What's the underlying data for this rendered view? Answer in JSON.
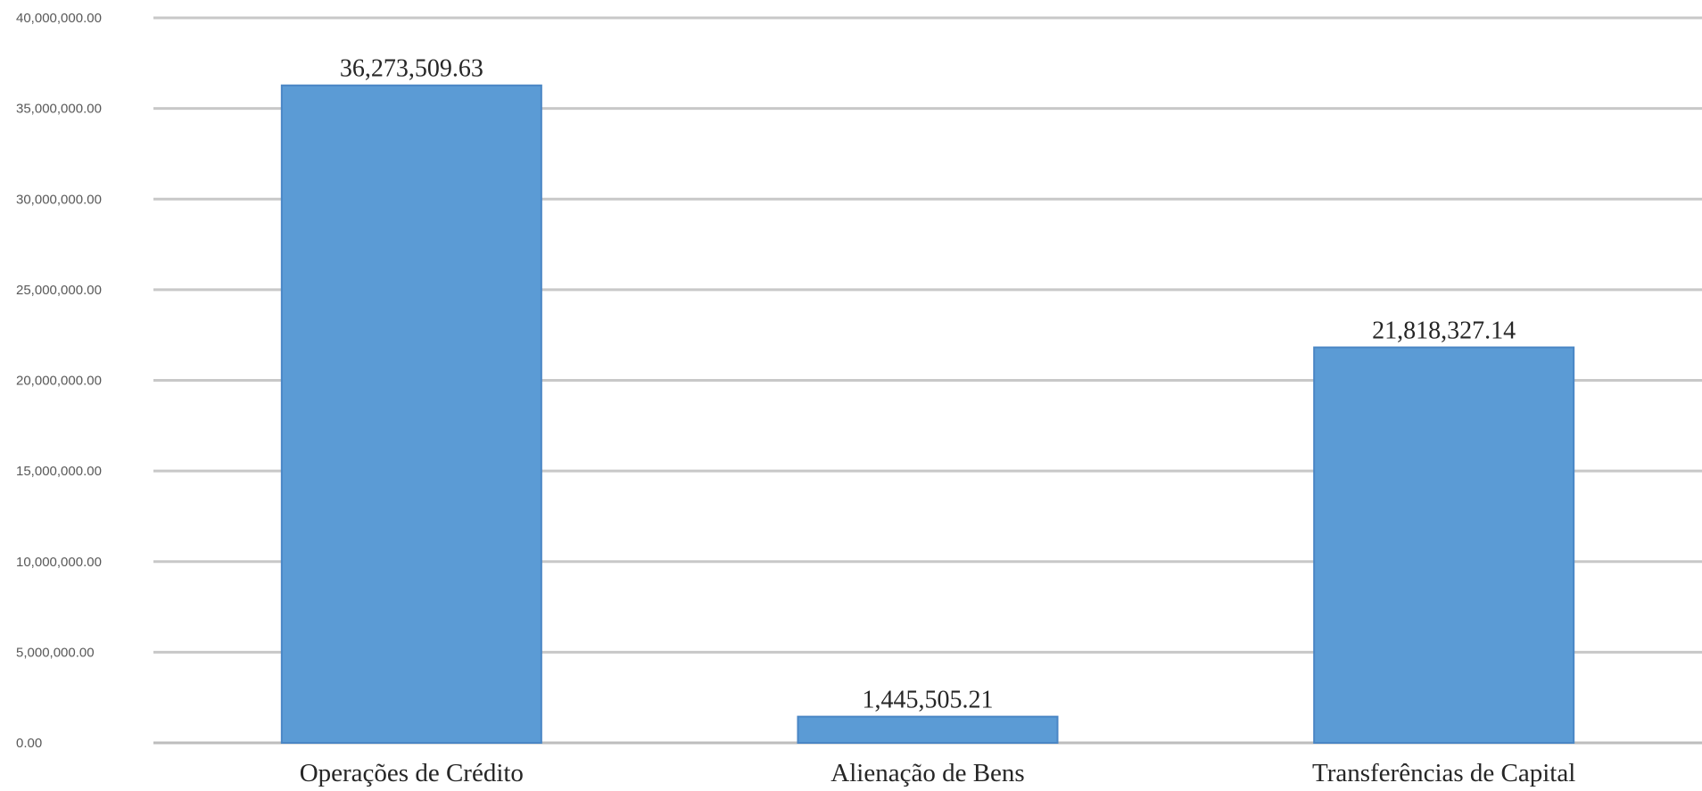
{
  "chart_data": {
    "type": "bar",
    "title": "",
    "xlabel": "",
    "ylabel": "",
    "categories": [
      "Operações de Crédito",
      "Alienação de Bens",
      "Transferências de Capital"
    ],
    "values": [
      36273509.63,
      1445505.21,
      21818327.14
    ],
    "data_labels": [
      "36,273,509.63",
      "1,445,505.21",
      "21,818,327.14"
    ],
    "ylim": [
      0,
      40000000
    ],
    "yticks": [
      0,
      5000000,
      10000000,
      15000000,
      20000000,
      25000000,
      30000000,
      35000000,
      40000000
    ],
    "ytick_labels": [
      "0.00",
      "5,000,000.00",
      "10,000,000.00",
      "15,000,000.00",
      "20,000,000.00",
      "25,000,000.00",
      "30,000,000.00",
      "35,000,000.00",
      "40,000,000.00"
    ],
    "grid": true,
    "legend": "none",
    "bar_color": "#5b9bd5"
  }
}
